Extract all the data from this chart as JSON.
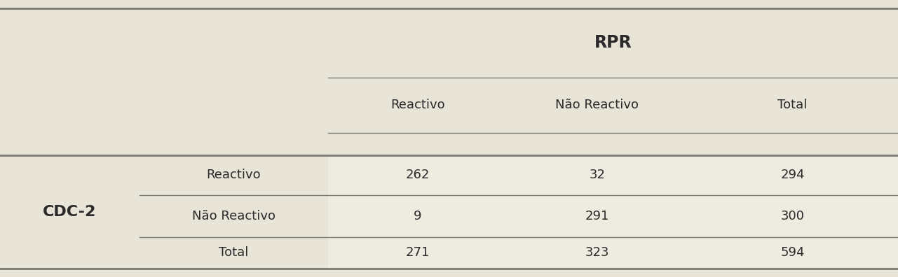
{
  "bg_color": "#e8e4d8",
  "data_bg_color": "#eeebe1",
  "text_color": "#2a2a2a",
  "line_color": "#7a7a72",
  "rpr_header": "RPR",
  "col_headers": [
    "Reactivo",
    "Não Reactivo",
    "Total"
  ],
  "row_headers": [
    "Reactivo",
    "Não Reactivo",
    "Total"
  ],
  "cdc2_label": "CDC-2",
  "cell_data": [
    [
      "262",
      "32",
      "294"
    ],
    [
      "9",
      "291",
      "300"
    ],
    [
      "271",
      "323",
      "594"
    ]
  ],
  "figsize": [
    12.81,
    3.96
  ],
  "dpi": 100,
  "c0": 0.0,
  "c1": 0.155,
  "c2": 0.365,
  "c3": 0.565,
  "c4": 0.765,
  "c5": 1.0,
  "r_top": 0.97,
  "r_rpr_line": 0.72,
  "r_subhdr_line": 0.52,
  "r_thick_line": 0.44,
  "r_row1_bot": 0.295,
  "r_row2_bot": 0.145,
  "r_bot": 0.03
}
